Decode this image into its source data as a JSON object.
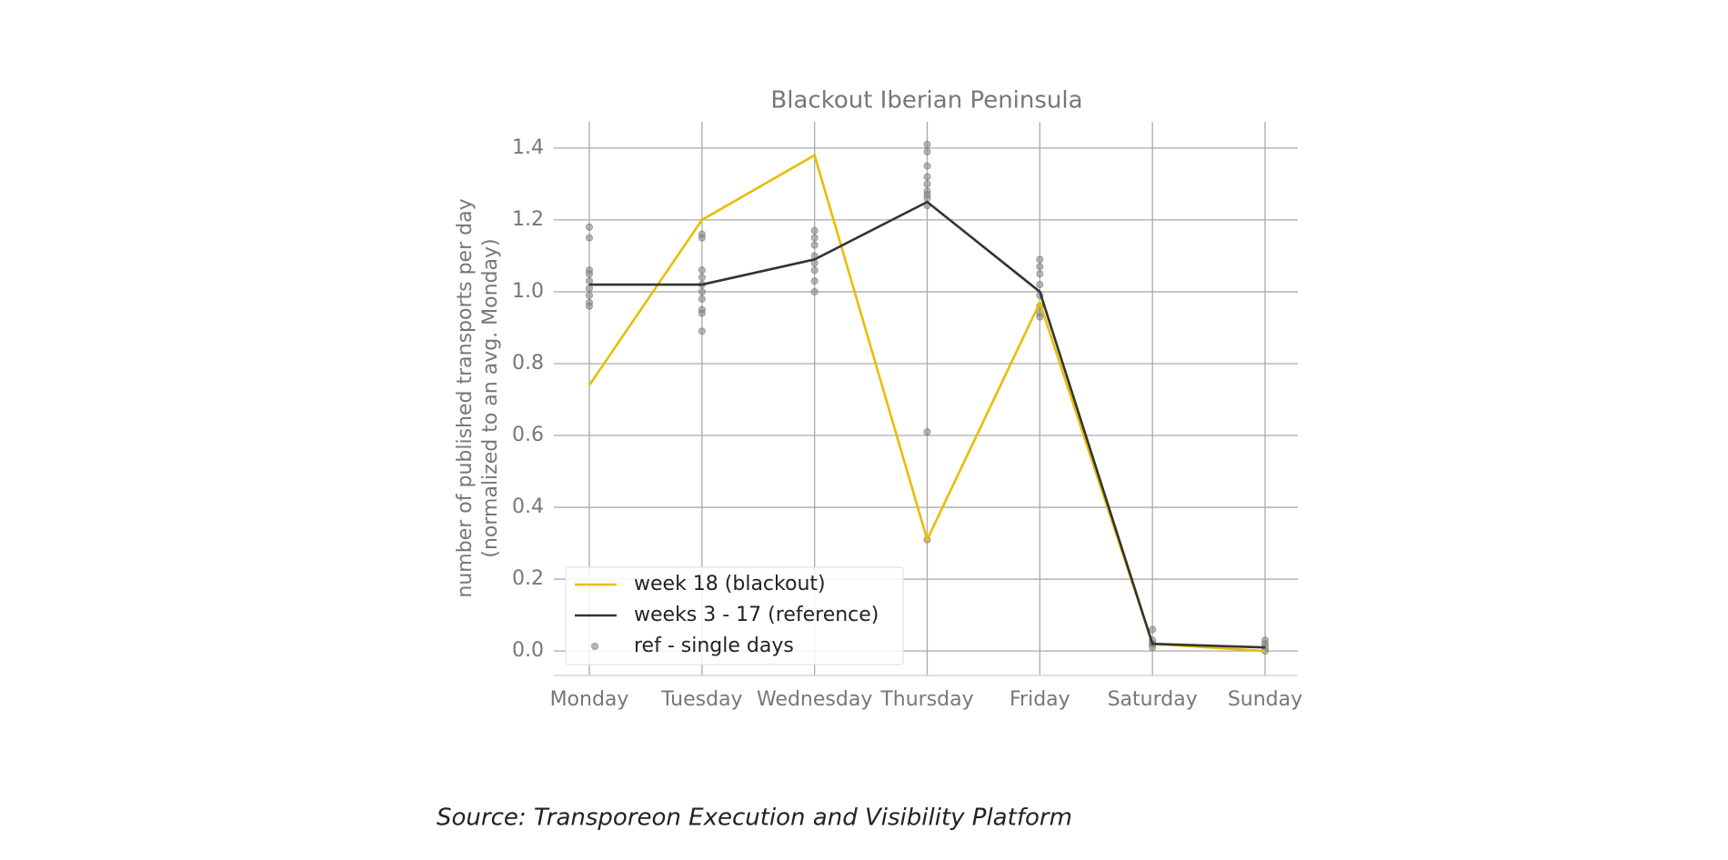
{
  "chart_data": {
    "type": "line",
    "title": "Blackout Iberian Peninsula",
    "y_label": [
      "number of published transports per day",
      "(normalized to an avg. Monday)"
    ],
    "categories": [
      "Monday",
      "Tuesday",
      "Wednesday",
      "Thursday",
      "Friday",
      "Saturday",
      "Sunday"
    ],
    "series": [
      {
        "name": "week 18 (blackout)",
        "color": "#e8be00",
        "values": [
          0.74,
          1.2,
          1.38,
          0.31,
          0.97,
          0.02,
          0.0
        ]
      },
      {
        "name": "weeks 3 - 17 (reference)",
        "color": "#333333",
        "values": [
          1.02,
          1.02,
          1.09,
          1.25,
          1.0,
          0.02,
          0.01
        ]
      },
      {
        "name": "ref - single days",
        "type": "scatter",
        "color": "#888888",
        "values": [
          [
            1.18,
            1.15,
            1.06,
            1.05,
            1.03,
            1.01,
            0.99,
            0.97,
            0.96
          ],
          [
            1.16,
            1.15,
            1.06,
            1.04,
            1.02,
            1.0,
            0.98,
            0.95,
            0.94,
            0.89
          ],
          [
            1.17,
            1.15,
            1.13,
            1.1,
            1.08,
            1.06,
            1.03,
            1.0
          ],
          [
            1.41,
            1.39,
            1.35,
            1.32,
            1.3,
            1.28,
            1.27,
            1.26,
            1.24,
            0.61,
            0.31
          ],
          [
            1.09,
            1.07,
            1.05,
            1.02,
            0.99,
            0.96,
            0.94,
            0.93
          ],
          [
            0.06,
            0.03,
            0.02,
            0.02,
            0.01
          ],
          [
            0.03,
            0.02,
            0.01,
            0.0
          ]
        ]
      }
    ],
    "ylim": [
      -0.068,
      1.473
    ],
    "yticks": [
      {
        "value": 0,
        "label": "0.0"
      },
      0.2,
      0.4,
      0.6,
      0.8,
      {
        "value": 1,
        "label": "1.0"
      },
      1.2,
      1.4
    ],
    "grid": true,
    "legend": "lower left",
    "source": "Source: Transporeon Execution and Visibility Platform"
  }
}
